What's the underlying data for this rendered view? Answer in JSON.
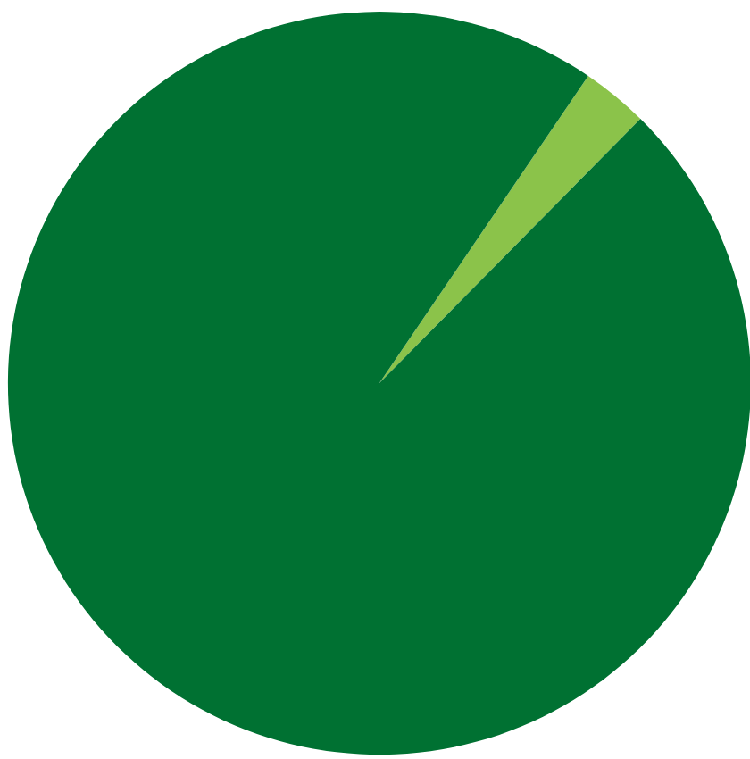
{
  "chart_data": {
    "type": "pie",
    "categories": [
      null,
      null
    ],
    "values": [
      2.9,
      97.1
    ],
    "colors": [
      "#8bc34a",
      "#007132"
    ]
  }
}
